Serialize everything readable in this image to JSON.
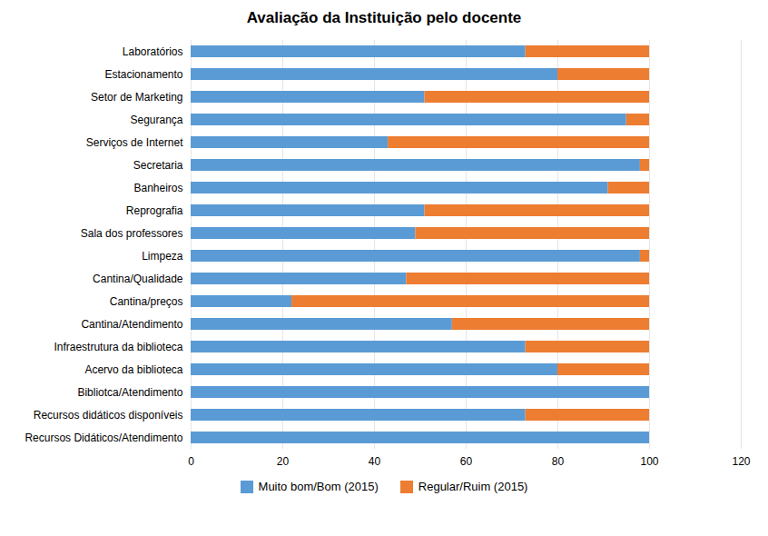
{
  "chart_data": {
    "type": "bar",
    "orientation": "horizontal",
    "stacked": true,
    "title": "Avaliação da Instituição pelo docente",
    "categories": [
      "Recursos Didáticos/Atendimento",
      "Recursos didáticos disponíveis",
      "Bibliotca/Atendimento",
      "Acervo da biblioteca",
      "Infraestrutura da biblioteca",
      "Cantina/Atendimento",
      "Cantina/preços",
      "Cantina/Qualidade",
      "Limpeza",
      "Sala dos professores",
      "Reprografia",
      "Banheiros",
      "Secretaria",
      "Serviços de Internet",
      "Segurança",
      "Setor de Marketing",
      "Estacionamento",
      "Laboratórios"
    ],
    "series": [
      {
        "name": "Muito bom/Bom (2015)",
        "color": "#5B9BD5",
        "values": [
          100,
          73,
          100,
          80,
          73,
          57,
          22,
          47,
          98,
          49,
          51,
          91,
          98,
          43,
          95,
          51,
          80,
          73
        ]
      },
      {
        "name": "Regular/Ruim (2015)",
        "color": "#ED7D31",
        "values": [
          0,
          27,
          0,
          20,
          27,
          43,
          78,
          53,
          2,
          51,
          49,
          9,
          2,
          57,
          5,
          49,
          20,
          27
        ]
      }
    ],
    "xlim": [
      0,
      120
    ],
    "xticks": [
      0,
      20,
      40,
      60,
      80,
      100,
      120
    ],
    "grid": true,
    "legend": "bottom"
  }
}
